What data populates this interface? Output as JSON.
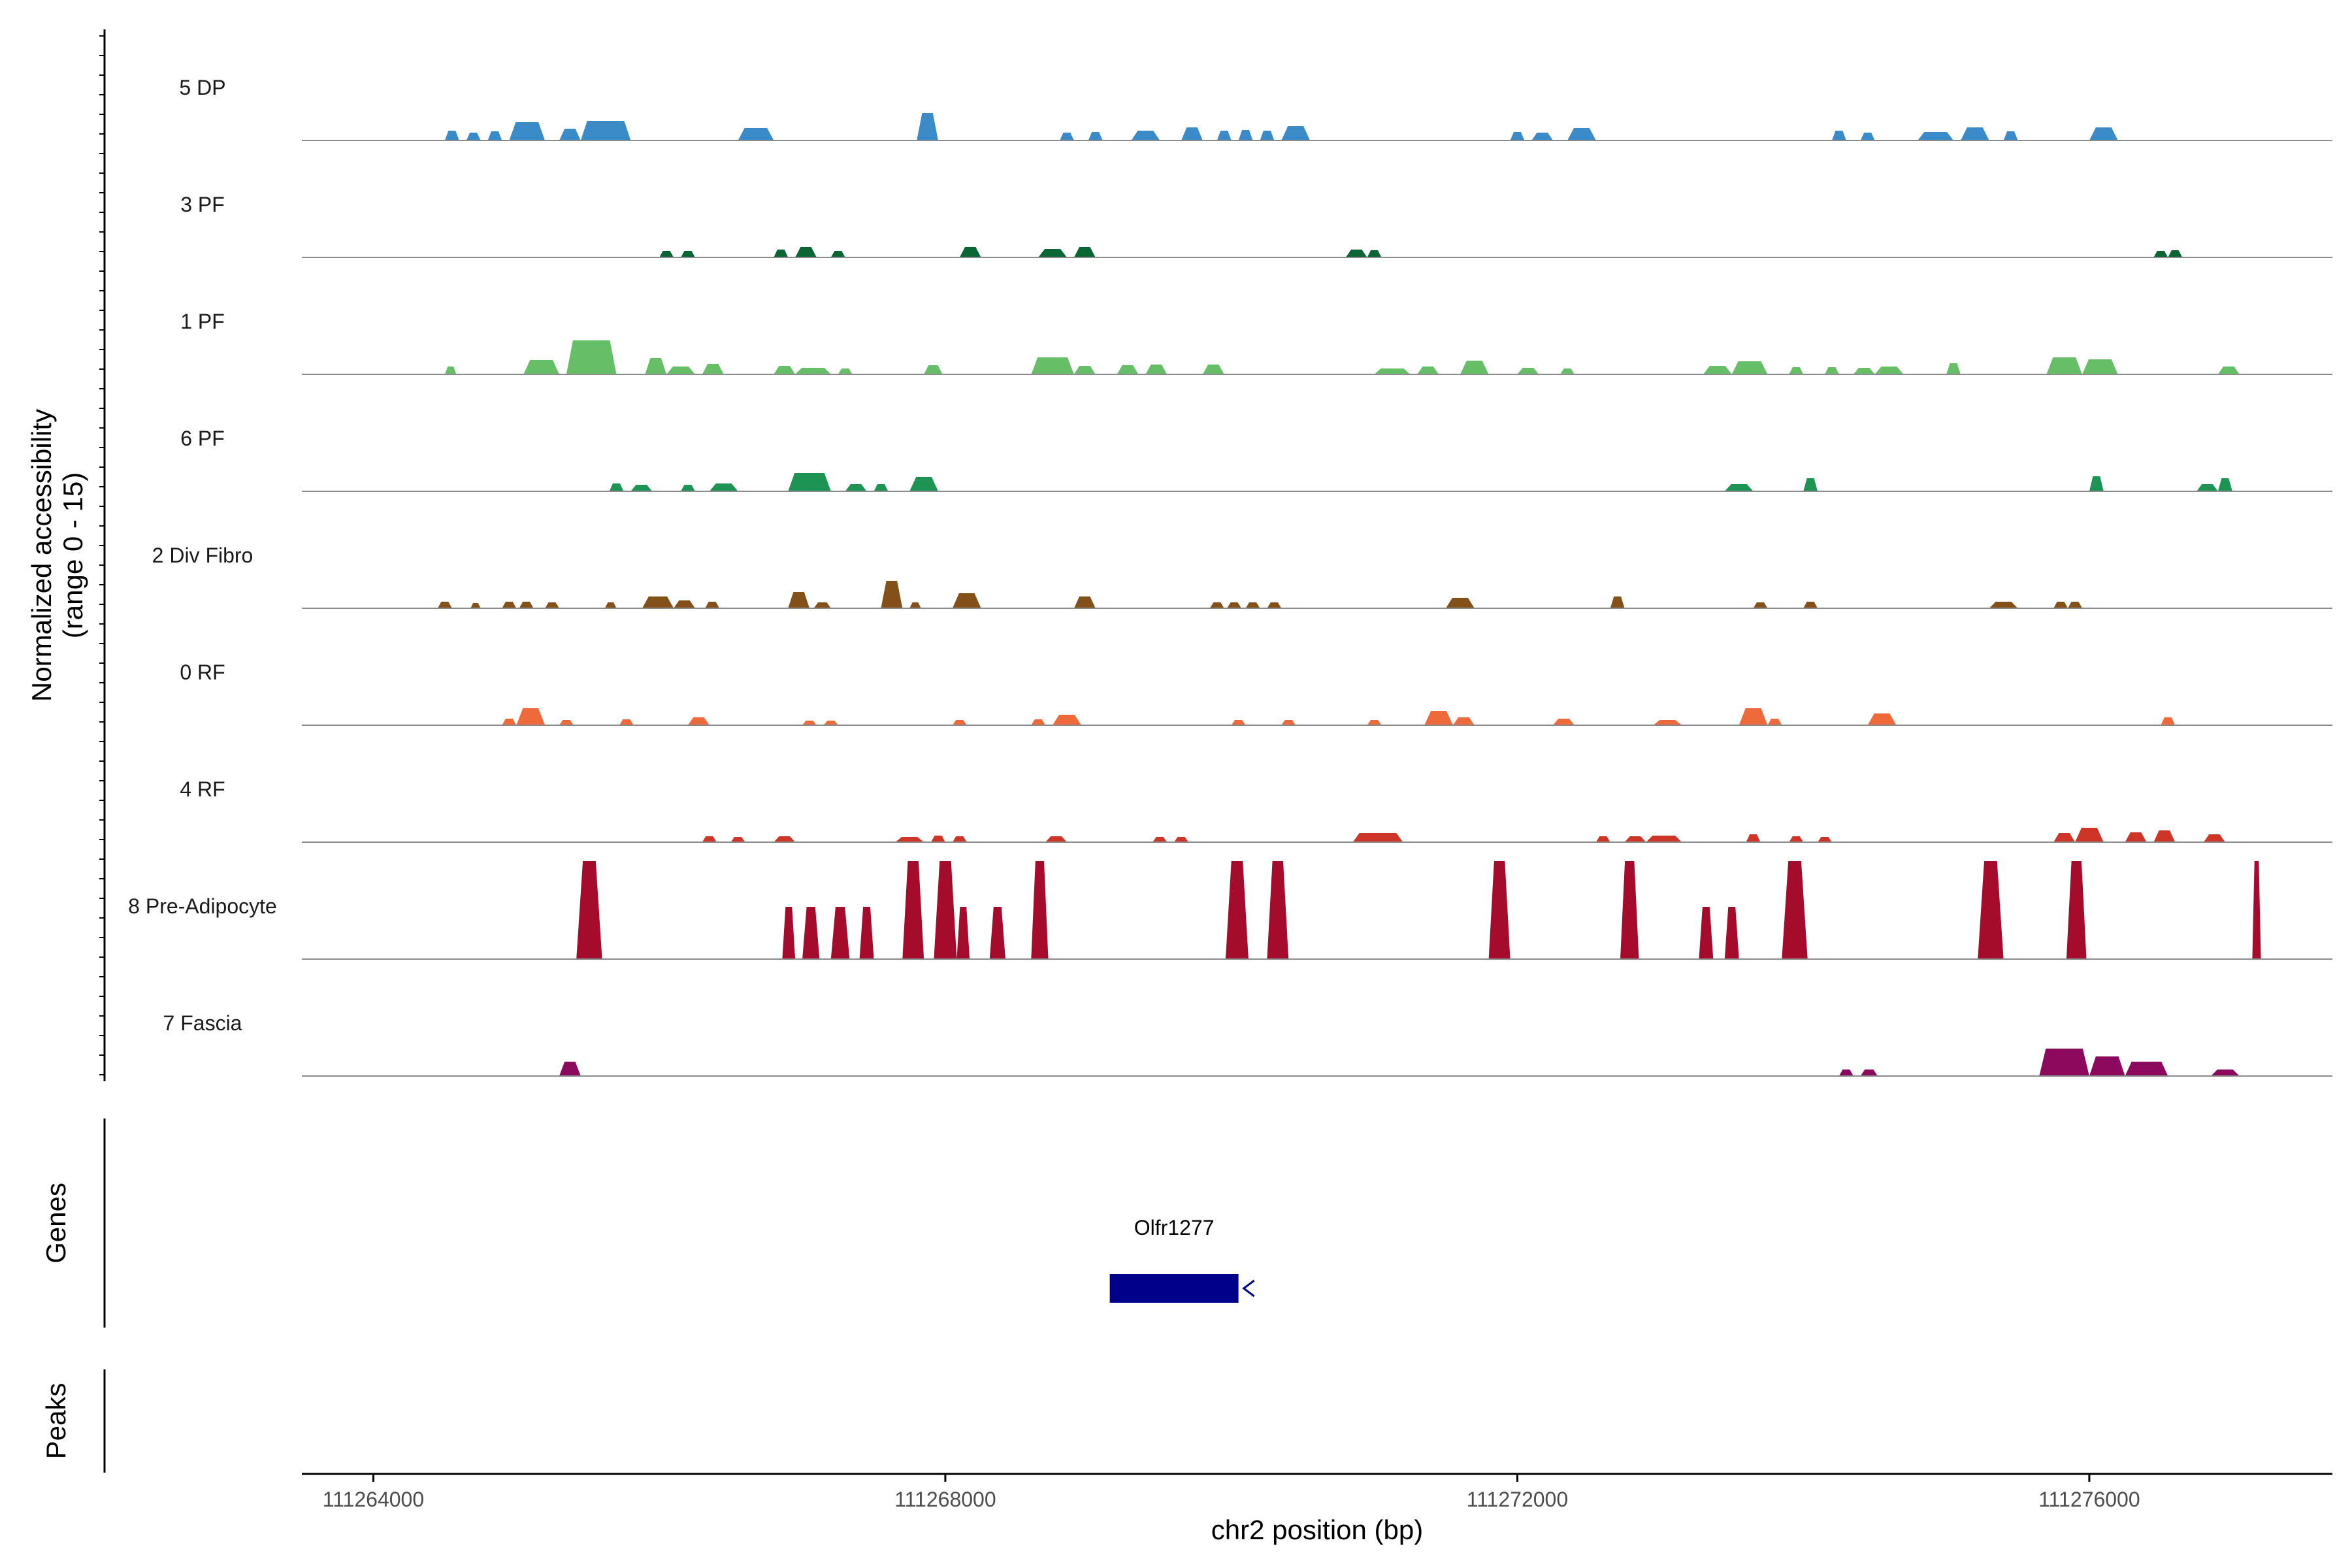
{
  "chart_data": {
    "type": "area",
    "ylabel": "Normalized accessibility (range 0 - 15)",
    "ylabel_lines": [
      "Normalized accessibility",
      "(range 0 - 15)"
    ],
    "xlabel": "chr2 position (bp)",
    "xlim": [
      111263500,
      111277700
    ],
    "x_ticks": [
      111264000,
      111268000,
      111272000,
      111276000
    ],
    "x_tick_labels": [
      "111264000",
      "111268000",
      "111272000",
      "111276000"
    ],
    "y_range": [
      0,
      15
    ],
    "panel_labels": {
      "genes": "Genes",
      "peaks": "Peaks"
    },
    "gene": {
      "name": "Olfr1277",
      "start": 111269150,
      "end": 111270050,
      "strand": "-",
      "color": "#00008B"
    },
    "tracks": [
      {
        "name": "5 DP",
        "color": "#3A8BC7",
        "regions": [
          [
            111264500,
            111264600,
            1.5
          ],
          [
            111264650,
            111264750,
            1.2
          ],
          [
            111264800,
            111264900,
            1.4
          ],
          [
            111264950,
            111265200,
            2.8
          ],
          [
            111265300,
            111265450,
            1.8
          ],
          [
            111265450,
            111265800,
            3.0
          ],
          [
            111266550,
            111266800,
            1.9
          ],
          [
            111267800,
            111267950,
            4.2
          ],
          [
            111268800,
            111268900,
            1.2
          ],
          [
            111269000,
            111269100,
            1.3
          ],
          [
            111269300,
            111269500,
            1.5
          ],
          [
            111269650,
            111269800,
            2.0
          ],
          [
            111269900,
            111270000,
            1.5
          ],
          [
            111270050,
            111270150,
            1.6
          ],
          [
            111270200,
            111270300,
            1.5
          ],
          [
            111270350,
            111270550,
            2.2
          ],
          [
            111271950,
            111272050,
            1.3
          ],
          [
            111272100,
            111272250,
            1.2
          ],
          [
            111272350,
            111272550,
            1.9
          ],
          [
            111274200,
            111274300,
            1.5
          ],
          [
            111274400,
            111274500,
            1.2
          ],
          [
            111274800,
            111275050,
            1.3
          ],
          [
            111275100,
            111275300,
            2.0
          ],
          [
            111275400,
            111275500,
            1.4
          ],
          [
            111276000,
            111276200,
            2.0
          ]
        ]
      },
      {
        "name": "3 PF",
        "color": "#0A6633",
        "regions": [
          [
            111266000,
            111266100,
            1.0
          ],
          [
            111266150,
            111266250,
            1.0
          ],
          [
            111266800,
            111266900,
            1.2
          ],
          [
            111266950,
            111267100,
            1.6
          ],
          [
            111267200,
            111267300,
            1.0
          ],
          [
            111268100,
            111268250,
            1.6
          ],
          [
            111268650,
            111268850,
            1.3
          ],
          [
            111268900,
            111269050,
            1.6
          ],
          [
            111270800,
            111270950,
            1.2
          ],
          [
            111270950,
            111271050,
            1.1
          ],
          [
            111276450,
            111276550,
            1.0
          ],
          [
            111276550,
            111276650,
            1.1
          ]
        ]
      },
      {
        "name": "1 PF",
        "color": "#66BE66",
        "regions": [
          [
            111264500,
            111264580,
            1.2
          ],
          [
            111265050,
            111265300,
            2.2
          ],
          [
            111265350,
            111265700,
            5.2
          ],
          [
            111265900,
            111266050,
            2.5
          ],
          [
            111266050,
            111266250,
            1.2
          ],
          [
            111266300,
            111266450,
            1.6
          ],
          [
            111266800,
            111266950,
            1.3
          ],
          [
            111266950,
            111267200,
            1.0
          ],
          [
            111267250,
            111267350,
            0.9
          ],
          [
            111267850,
            111267980,
            1.4
          ],
          [
            111268600,
            111268900,
            2.6
          ],
          [
            111268900,
            111269050,
            1.3
          ],
          [
            111269200,
            111269350,
            1.4
          ],
          [
            111269400,
            111269550,
            1.5
          ],
          [
            111269800,
            111269950,
            1.5
          ],
          [
            111271000,
            111271250,
            0.9
          ],
          [
            111271300,
            111271450,
            1.2
          ],
          [
            111271600,
            111271800,
            2.1
          ],
          [
            111272000,
            111272150,
            1.0
          ],
          [
            111272300,
            111272400,
            0.9
          ],
          [
            111273300,
            111273500,
            1.3
          ],
          [
            111273500,
            111273750,
            2.0
          ],
          [
            111273900,
            111274000,
            1.1
          ],
          [
            111274150,
            111274250,
            1.1
          ],
          [
            111274350,
            111274500,
            1.0
          ],
          [
            111274500,
            111274700,
            1.2
          ],
          [
            111275000,
            111275100,
            1.7
          ],
          [
            111275700,
            111275950,
            2.6
          ],
          [
            111275950,
            111276200,
            2.3
          ],
          [
            111276900,
            111277050,
            1.2
          ]
        ]
      },
      {
        "name": "6 PF",
        "color": "#1D9454",
        "regions": [
          [
            111265650,
            111265750,
            1.2
          ],
          [
            111265800,
            111265950,
            1.0
          ],
          [
            111266150,
            111266250,
            1.0
          ],
          [
            111266350,
            111266550,
            1.2
          ],
          [
            111266900,
            111267200,
            2.8
          ],
          [
            111267300,
            111267450,
            1.1
          ],
          [
            111267500,
            111267600,
            1.1
          ],
          [
            111267750,
            111267950,
            2.2
          ],
          [
            111273450,
            111273650,
            1.1
          ],
          [
            111274000,
            111274100,
            2.0
          ],
          [
            111276000,
            111276100,
            2.3
          ],
          [
            111276750,
            111276900,
            1.1
          ],
          [
            111276900,
            111277000,
            2.0
          ]
        ]
      },
      {
        "name": "2 Div Fibro",
        "color": "#84501A",
        "regions": [
          [
            111264450,
            111264550,
            1.0
          ],
          [
            111264680,
            111264750,
            0.8
          ],
          [
            111264900,
            111265000,
            1.0
          ],
          [
            111265020,
            111265120,
            1.0
          ],
          [
            111265200,
            111265300,
            0.9
          ],
          [
            111265620,
            111265700,
            0.9
          ],
          [
            111265880,
            111266100,
            1.8
          ],
          [
            111266100,
            111266250,
            1.2
          ],
          [
            111266320,
            111266420,
            1.0
          ],
          [
            111266900,
            111267050,
            2.5
          ],
          [
            111267080,
            111267200,
            0.9
          ],
          [
            111267550,
            111267700,
            4.2
          ],
          [
            111267750,
            111267830,
            0.9
          ],
          [
            111268050,
            111268250,
            2.3
          ],
          [
            111268900,
            111269050,
            1.8
          ],
          [
            111269850,
            111269950,
            0.9
          ],
          [
            111269970,
            111270070,
            0.9
          ],
          [
            111270100,
            111270200,
            0.9
          ],
          [
            111270250,
            111270350,
            0.9
          ],
          [
            111271500,
            111271700,
            1.6
          ],
          [
            111272650,
            111272750,
            1.8
          ],
          [
            111273650,
            111273750,
            0.9
          ],
          [
            111274000,
            111274100,
            1.0
          ],
          [
            111275300,
            111275500,
            1.0
          ],
          [
            111275750,
            111275850,
            1.0
          ],
          [
            111275850,
            111275950,
            1.0
          ]
        ]
      },
      {
        "name": "0 RF",
        "color": "#EF6A3A",
        "regions": [
          [
            111264900,
            111265000,
            1.0
          ],
          [
            111265000,
            111265200,
            2.6
          ],
          [
            111265300,
            111265400,
            0.8
          ],
          [
            111265720,
            111265820,
            0.9
          ],
          [
            111266200,
            111266350,
            1.2
          ],
          [
            111267000,
            111267100,
            0.7
          ],
          [
            111267150,
            111267250,
            0.7
          ],
          [
            111268050,
            111268150,
            0.8
          ],
          [
            111268600,
            111268700,
            0.9
          ],
          [
            111268750,
            111268950,
            1.6
          ],
          [
            111270000,
            111270100,
            0.8
          ],
          [
            111270350,
            111270450,
            0.8
          ],
          [
            111270950,
            111271050,
            0.8
          ],
          [
            111271350,
            111271550,
            2.2
          ],
          [
            111271550,
            111271700,
            1.2
          ],
          [
            111272250,
            111272400,
            1.0
          ],
          [
            111272950,
            111273150,
            0.8
          ],
          [
            111273550,
            111273750,
            2.6
          ],
          [
            111273750,
            111273850,
            1.0
          ],
          [
            111274450,
            111274650,
            1.8
          ],
          [
            111276500,
            111276600,
            1.2
          ]
        ]
      },
      {
        "name": "4 RF",
        "color": "#CF3526",
        "regions": [
          [
            111266300,
            111266400,
            0.9
          ],
          [
            111266500,
            111266600,
            0.8
          ],
          [
            111266800,
            111266950,
            0.9
          ],
          [
            111267650,
            111267850,
            0.8
          ],
          [
            111267900,
            111268000,
            1.0
          ],
          [
            111268050,
            111268150,
            0.9
          ],
          [
            111268700,
            111268850,
            0.9
          ],
          [
            111269450,
            111269550,
            0.8
          ],
          [
            111269600,
            111269700,
            0.8
          ],
          [
            111270850,
            111271200,
            1.4
          ],
          [
            111272550,
            111272650,
            0.9
          ],
          [
            111272750,
            111272900,
            0.9
          ],
          [
            111272900,
            111273150,
            1.0
          ],
          [
            111273600,
            111273700,
            1.2
          ],
          [
            111273900,
            111274000,
            0.9
          ],
          [
            111274100,
            111274200,
            0.8
          ],
          [
            111275750,
            111275900,
            1.4
          ],
          [
            111275900,
            111276100,
            2.2
          ],
          [
            111276250,
            111276400,
            1.5
          ],
          [
            111276450,
            111276600,
            1.8
          ],
          [
            111276800,
            111276950,
            1.2
          ]
        ]
      },
      {
        "name": "8 Pre-Adipocyte",
        "color": "#A50B2B",
        "regions": [
          [
            111265420,
            111265600,
            15
          ],
          [
            111266860,
            111266950,
            8
          ],
          [
            111267000,
            111267120,
            8
          ],
          [
            111267200,
            111267330,
            8
          ],
          [
            111267400,
            111267500,
            8
          ],
          [
            111267700,
            111267850,
            15
          ],
          [
            111267920,
            111268080,
            15
          ],
          [
            111268080,
            111268170,
            8
          ],
          [
            111268310,
            111268420,
            8
          ],
          [
            111268600,
            111268720,
            15
          ],
          [
            111269960,
            111270120,
            15
          ],
          [
            111270250,
            111270400,
            15
          ],
          [
            111271800,
            111271950,
            15
          ],
          [
            111272720,
            111272850,
            15
          ],
          [
            111273270,
            111273370,
            8
          ],
          [
            111273450,
            111273550,
            8
          ],
          [
            111273850,
            111274030,
            15
          ],
          [
            111275220,
            111275400,
            15
          ],
          [
            111275840,
            111275980,
            15
          ],
          [
            111277140,
            111277200,
            15
          ]
        ]
      },
      {
        "name": "7 Fascia",
        "color": "#8B0A5E",
        "regions": [
          [
            111265300,
            111265450,
            2.2
          ],
          [
            111274250,
            111274350,
            1.0
          ],
          [
            111274400,
            111274520,
            1.0
          ],
          [
            111275650,
            111276000,
            4.2
          ],
          [
            111276000,
            111276250,
            3.0
          ],
          [
            111276250,
            111276550,
            2.2
          ],
          [
            111276850,
            111277050,
            1.0
          ]
        ]
      }
    ]
  }
}
